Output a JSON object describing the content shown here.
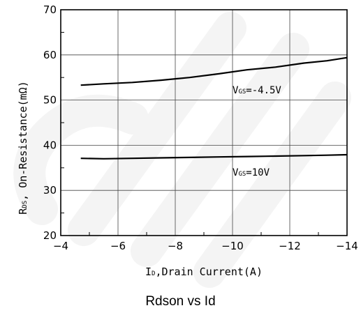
{
  "chart_data": {
    "type": "line",
    "caption": "Rdson vs Id",
    "ylabel": {
      "main": "R",
      "sub": "DS",
      "rest": ", On-Resistance(mΩ)"
    },
    "xlabel": {
      "main": "I",
      "sub": "D",
      "rest": ",Drain Current(A)"
    },
    "xlim": [
      -4,
      -14
    ],
    "ylim": [
      20,
      70
    ],
    "xticks": [
      -4,
      -6,
      -8,
      -10,
      -12,
      -14
    ],
    "xtick_labels": [
      "−4",
      "−6",
      "−8",
      "−10",
      "−12",
      "−14"
    ],
    "yticks": [
      20,
      30,
      40,
      50,
      60,
      70
    ],
    "ytick_labels": [
      "20",
      "30",
      "40",
      "50",
      "60",
      "70"
    ],
    "grid": true,
    "series": [
      {
        "label_main": "V",
        "label_sub": "GS",
        "label_rest": "=-4.5V",
        "label_at": [
          -10,
          51.5
        ],
        "color": "#000000",
        "points": [
          [
            -4.7,
            53.3
          ],
          [
            -5.5,
            53.6
          ],
          [
            -6.5,
            53.9
          ],
          [
            -7.5,
            54.4
          ],
          [
            -8.5,
            55.0
          ],
          [
            -9.5,
            55.8
          ],
          [
            -10.5,
            56.7
          ],
          [
            -11.5,
            57.3
          ],
          [
            -12.5,
            58.2
          ],
          [
            -13.3,
            58.7
          ],
          [
            -14,
            59.4
          ]
        ]
      },
      {
        "label_main": "V",
        "label_sub": "GS",
        "label_rest": "=10V",
        "label_at": [
          -10,
          33.3
        ],
        "color": "#000000",
        "points": [
          [
            -4.7,
            37.1
          ],
          [
            -5.5,
            37.0
          ],
          [
            -6.5,
            37.1
          ],
          [
            -7.5,
            37.2
          ],
          [
            -8.5,
            37.3
          ],
          [
            -9.5,
            37.4
          ],
          [
            -10.5,
            37.5
          ],
          [
            -11.5,
            37.6
          ],
          [
            -12.5,
            37.7
          ],
          [
            -13.3,
            37.8
          ],
          [
            -14,
            37.9
          ]
        ]
      }
    ],
    "grid_color": "#444444",
    "watermark_color": "#f4f4f4"
  }
}
